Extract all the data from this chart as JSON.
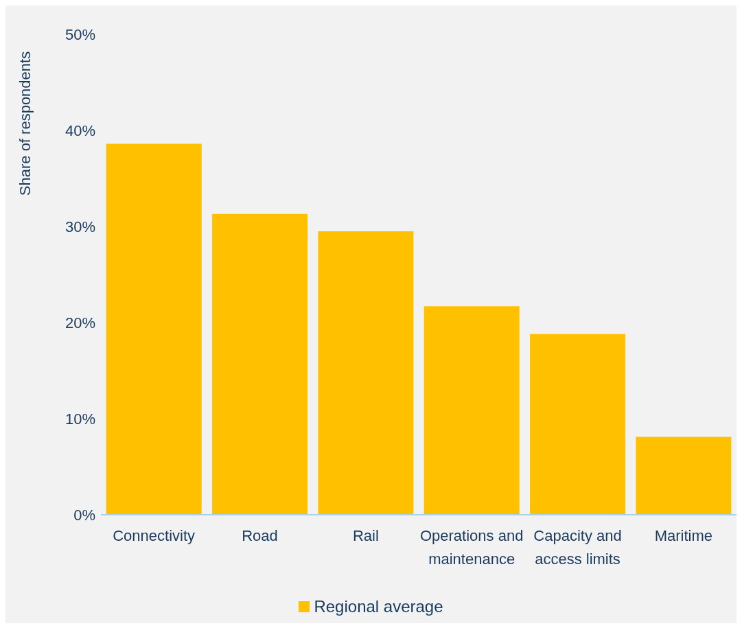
{
  "chart_data": {
    "type": "bar",
    "ylabel": "Share of respondents",
    "categories": [
      "Connectivity",
      "Road",
      "Rail",
      "Operations and maintenance",
      "Capacity and access limits",
      "Maritime"
    ],
    "series": [
      {
        "name": "Regional average",
        "color": "#ffc000",
        "values": [
          38.6,
          31.3,
          29.5,
          21.7,
          18.8,
          8.1
        ]
      }
    ],
    "ylim": [
      0,
      50
    ],
    "yticks": [
      {
        "value": 0,
        "label": "0%"
      },
      {
        "value": 10,
        "label": "10%"
      },
      {
        "value": 20,
        "label": "20%"
      },
      {
        "value": 30,
        "label": "30%"
      },
      {
        "value": 40,
        "label": "40%"
      },
      {
        "value": 50,
        "label": "50%"
      }
    ],
    "grid": false,
    "legend": "bottom"
  }
}
